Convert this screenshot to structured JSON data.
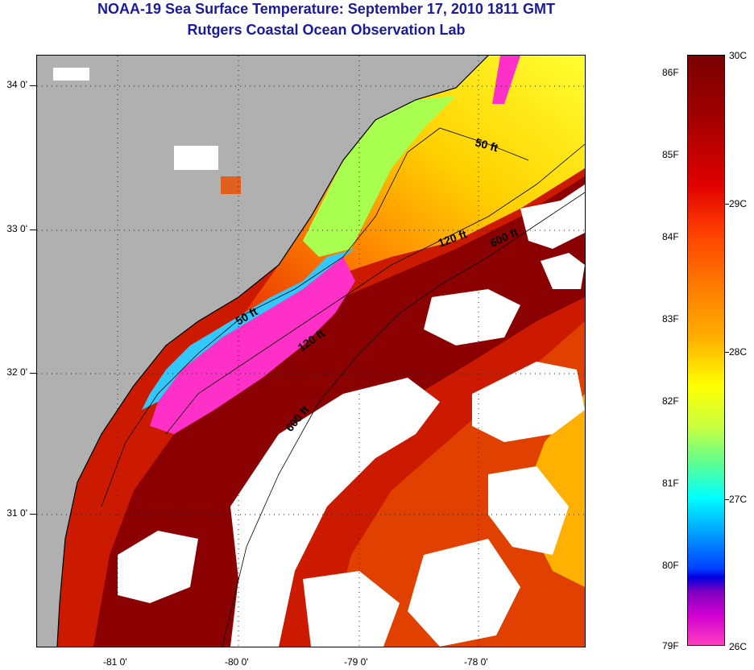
{
  "title": {
    "line1": "NOAA-19 Sea Surface Temperature:  September 17, 2010 1811 GMT",
    "line2": "Rutgers Coastal Ocean Observation Lab"
  },
  "map": {
    "longitude_labels": [
      "-81 0'",
      "-80 0'",
      "-79 0'",
      "-78 0'"
    ],
    "latitude_labels": [
      "34 0'",
      "33 0'",
      "32 0'",
      "31 0'"
    ],
    "isobath_labels": [
      "50 ft",
      "120 ft",
      "600 ft",
      "50 ft",
      "120 ft",
      "600 ft"
    ],
    "colors": {
      "land": "#b0b0b0",
      "cloud": "#ffffff",
      "warm": "#8b0000",
      "cool": "#ff30c8"
    }
  },
  "colorbar": {
    "fahrenheit_labels": [
      "86F",
      "85F",
      "84F",
      "83F",
      "82F",
      "81F",
      "80F",
      "79F"
    ],
    "celsius_labels": [
      "30C",
      "29C",
      "28C",
      "27C",
      "26C"
    ]
  }
}
